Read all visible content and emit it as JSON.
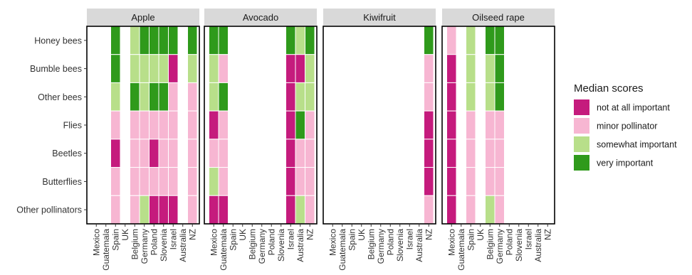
{
  "chart_data": {
    "type": "heatmap",
    "facets": [
      "Apple",
      "Avocado",
      "Kiwifruit",
      "Oilseed rape"
    ],
    "rows": [
      "Honey bees",
      "Bumble bees",
      "Other bees",
      "Flies",
      "Beetles",
      "Butterflies",
      "Other pollinators"
    ],
    "columns": [
      "Mexico",
      "Guatemala",
      "Spain",
      "UK",
      "Belgium",
      "Germany",
      "Poland",
      "Slovenia",
      "Israel",
      "Australia",
      "NZ"
    ],
    "legend": {
      "title": "Median scores",
      "placement": "right",
      "items": [
        {
          "key": "N",
          "label": "not at all important",
          "color": "#c51b7d"
        },
        {
          "key": "M",
          "label": "minor pollinator",
          "color": "#f7b6d2"
        },
        {
          "key": "S",
          "label": "somewhat important",
          "color": "#b8df8a"
        },
        {
          "key": "V",
          "label": "very important",
          "color": "#2f9a1b"
        }
      ]
    },
    "scores": {
      "Apple": [
        [
          "",
          "",
          "V",
          "",
          "S",
          "V",
          "V",
          "V",
          "V",
          "",
          "V"
        ],
        [
          "",
          "",
          "V",
          "",
          "S",
          "S",
          "S",
          "S",
          "N",
          "",
          "S"
        ],
        [
          "",
          "",
          "S",
          "",
          "V",
          "S",
          "V",
          "V",
          "M",
          "",
          "M"
        ],
        [
          "",
          "",
          "M",
          "",
          "M",
          "M",
          "M",
          "M",
          "M",
          "",
          "M"
        ],
        [
          "",
          "",
          "N",
          "",
          "M",
          "M",
          "N",
          "M",
          "M",
          "",
          "M"
        ],
        [
          "",
          "",
          "M",
          "",
          "M",
          "M",
          "M",
          "M",
          "M",
          "",
          "M"
        ],
        [
          "",
          "",
          "M",
          "",
          "M",
          "S",
          "N",
          "N",
          "N",
          "",
          "M"
        ]
      ],
      "Avocado": [
        [
          "V",
          "V",
          "",
          "",
          "",
          "",
          "",
          "",
          "V",
          "S",
          "V"
        ],
        [
          "S",
          "M",
          "",
          "",
          "",
          "",
          "",
          "",
          "N",
          "N",
          "S"
        ],
        [
          "S",
          "V",
          "",
          "",
          "",
          "",
          "",
          "",
          "N",
          "S",
          "S"
        ],
        [
          "N",
          "M",
          "",
          "",
          "",
          "",
          "",
          "",
          "N",
          "V",
          "M"
        ],
        [
          "M",
          "M",
          "",
          "",
          "",
          "",
          "",
          "",
          "N",
          "M",
          "M"
        ],
        [
          "S",
          "M",
          "",
          "",
          "",
          "",
          "",
          "",
          "N",
          "M",
          "M"
        ],
        [
          "N",
          "N",
          "",
          "",
          "",
          "",
          "",
          "",
          "N",
          "S",
          "M"
        ]
      ],
      "Kiwifruit": [
        [
          "",
          "",
          "",
          "",
          "",
          "",
          "",
          "",
          "",
          "",
          "V"
        ],
        [
          "",
          "",
          "",
          "",
          "",
          "",
          "",
          "",
          "",
          "",
          "M"
        ],
        [
          "",
          "",
          "",
          "",
          "",
          "",
          "",
          "",
          "",
          "",
          "M"
        ],
        [
          "",
          "",
          "",
          "",
          "",
          "",
          "",
          "",
          "",
          "",
          "N"
        ],
        [
          "",
          "",
          "",
          "",
          "",
          "",
          "",
          "",
          "",
          "",
          "N"
        ],
        [
          "",
          "",
          "",
          "",
          "",
          "",
          "",
          "",
          "",
          "",
          "N"
        ],
        [
          "",
          "",
          "",
          "",
          "",
          "",
          "",
          "",
          "",
          "",
          "M"
        ]
      ],
      "Oilseed rape": [
        [
          "M",
          "",
          "S",
          "",
          "V",
          "V",
          "",
          "",
          "",
          "",
          ""
        ],
        [
          "N",
          "",
          "S",
          "",
          "S",
          "V",
          "",
          "",
          "",
          "",
          ""
        ],
        [
          "N",
          "",
          "S",
          "",
          "S",
          "V",
          "",
          "",
          "",
          "",
          ""
        ],
        [
          "N",
          "",
          "M",
          "",
          "M",
          "M",
          "",
          "",
          "",
          "",
          ""
        ],
        [
          "N",
          "",
          "M",
          "",
          "M",
          "M",
          "",
          "",
          "",
          "",
          ""
        ],
        [
          "N",
          "",
          "M",
          "",
          "M",
          "M",
          "",
          "",
          "",
          "",
          ""
        ],
        [
          "N",
          "",
          "M",
          "",
          "S",
          "M",
          "",
          "",
          "",
          "",
          ""
        ]
      ]
    }
  }
}
